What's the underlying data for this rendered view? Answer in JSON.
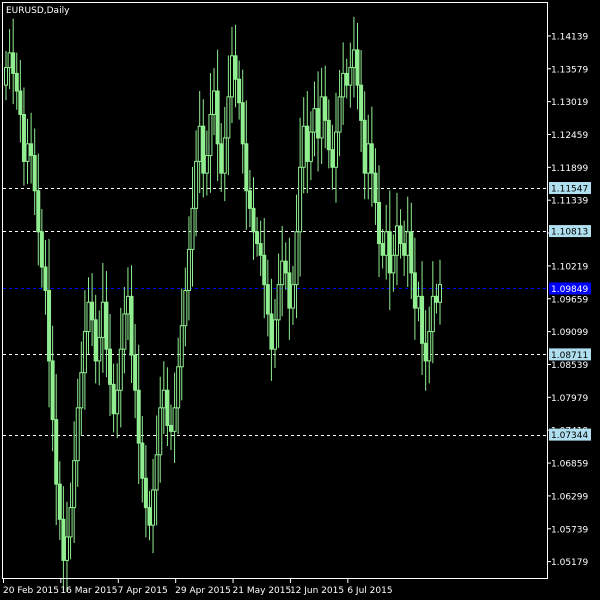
{
  "chart_data": {
    "type": "candlestick",
    "title": "EURUSD,Daily",
    "symbol": "EURUSD",
    "timeframe": "Daily",
    "colors": {
      "background": "#000000",
      "candle": "#90ee90",
      "axis": "#ffffff",
      "level_line": "#ffffff",
      "level_label_bg": "#b0e0f0",
      "current_line": "#0000ff",
      "current_label_bg": "#0000ff"
    },
    "ylim": [
      1.049,
      1.147
    ],
    "y_ticks": [
      "1.14139",
      "1.13579",
      "1.13019",
      "1.12459",
      "1.11899",
      "1.11339",
      "1.10779",
      "1.10219",
      "1.09659",
      "1.09099",
      "1.08539",
      "1.07979",
      "1.07419",
      "1.06859",
      "1.06299",
      "1.05739",
      "1.05179"
    ],
    "x_labels": [
      "20 Feb 2015",
      "16 Mar 2015",
      "7 Apr 2015",
      "29 Apr 2015",
      "21 May 2015",
      "12 Jun 2015",
      "6 Jul 2015"
    ],
    "x_label_indices": [
      0,
      16,
      32,
      48,
      64,
      80,
      96
    ],
    "levels": [
      {
        "label": "1.11547",
        "value": 1.11547
      },
      {
        "label": "1.10813",
        "value": 1.10813
      },
      {
        "label": "1.08711",
        "value": 1.08711
      },
      {
        "label": "1.07344",
        "value": 1.07344
      }
    ],
    "current": {
      "label": "1.09849",
      "value": 1.09849
    },
    "grid": false,
    "legend": "none",
    "closes": [
      1.136,
      1.1385,
      1.135,
      1.132,
      1.128,
      1.12,
      1.123,
      1.121,
      1.115,
      1.108,
      1.102,
      1.098,
      1.086,
      1.076,
      1.065,
      1.059,
      1.052,
      1.056,
      1.061,
      1.069,
      1.078,
      1.084,
      1.091,
      1.096,
      1.093,
      1.086,
      1.09,
      1.096,
      1.088,
      1.082,
      1.077,
      1.081,
      1.088,
      1.094,
      1.097,
      1.087,
      1.081,
      1.072,
      1.066,
      1.061,
      1.058,
      1.064,
      1.07,
      1.078,
      1.081,
      1.075,
      1.074,
      1.078,
      1.085,
      1.092,
      1.098,
      1.105,
      1.112,
      1.12,
      1.126,
      1.118,
      1.121,
      1.128,
      1.132,
      1.123,
      1.118,
      1.124,
      1.131,
      1.138,
      1.134,
      1.13,
      1.123,
      1.115,
      1.112,
      1.108,
      1.106,
      1.104,
      1.099,
      1.094,
      1.088,
      1.093,
      1.099,
      1.103,
      1.101,
      1.095,
      1.099,
      1.108,
      1.119,
      1.126,
      1.12,
      1.125,
      1.129,
      1.124,
      1.131,
      1.127,
      1.122,
      1.119,
      1.125,
      1.131,
      1.135,
      1.133,
      1.136,
      1.139,
      1.133,
      1.127,
      1.118,
      1.123,
      1.118,
      1.113,
      1.106,
      1.104,
      1.108,
      1.101,
      1.104,
      1.109,
      1.106,
      1.104,
      1.108,
      1.101,
      1.095,
      1.097,
      1.089,
      1.086,
      1.091,
      1.097,
      1.096,
      1.099
    ]
  }
}
